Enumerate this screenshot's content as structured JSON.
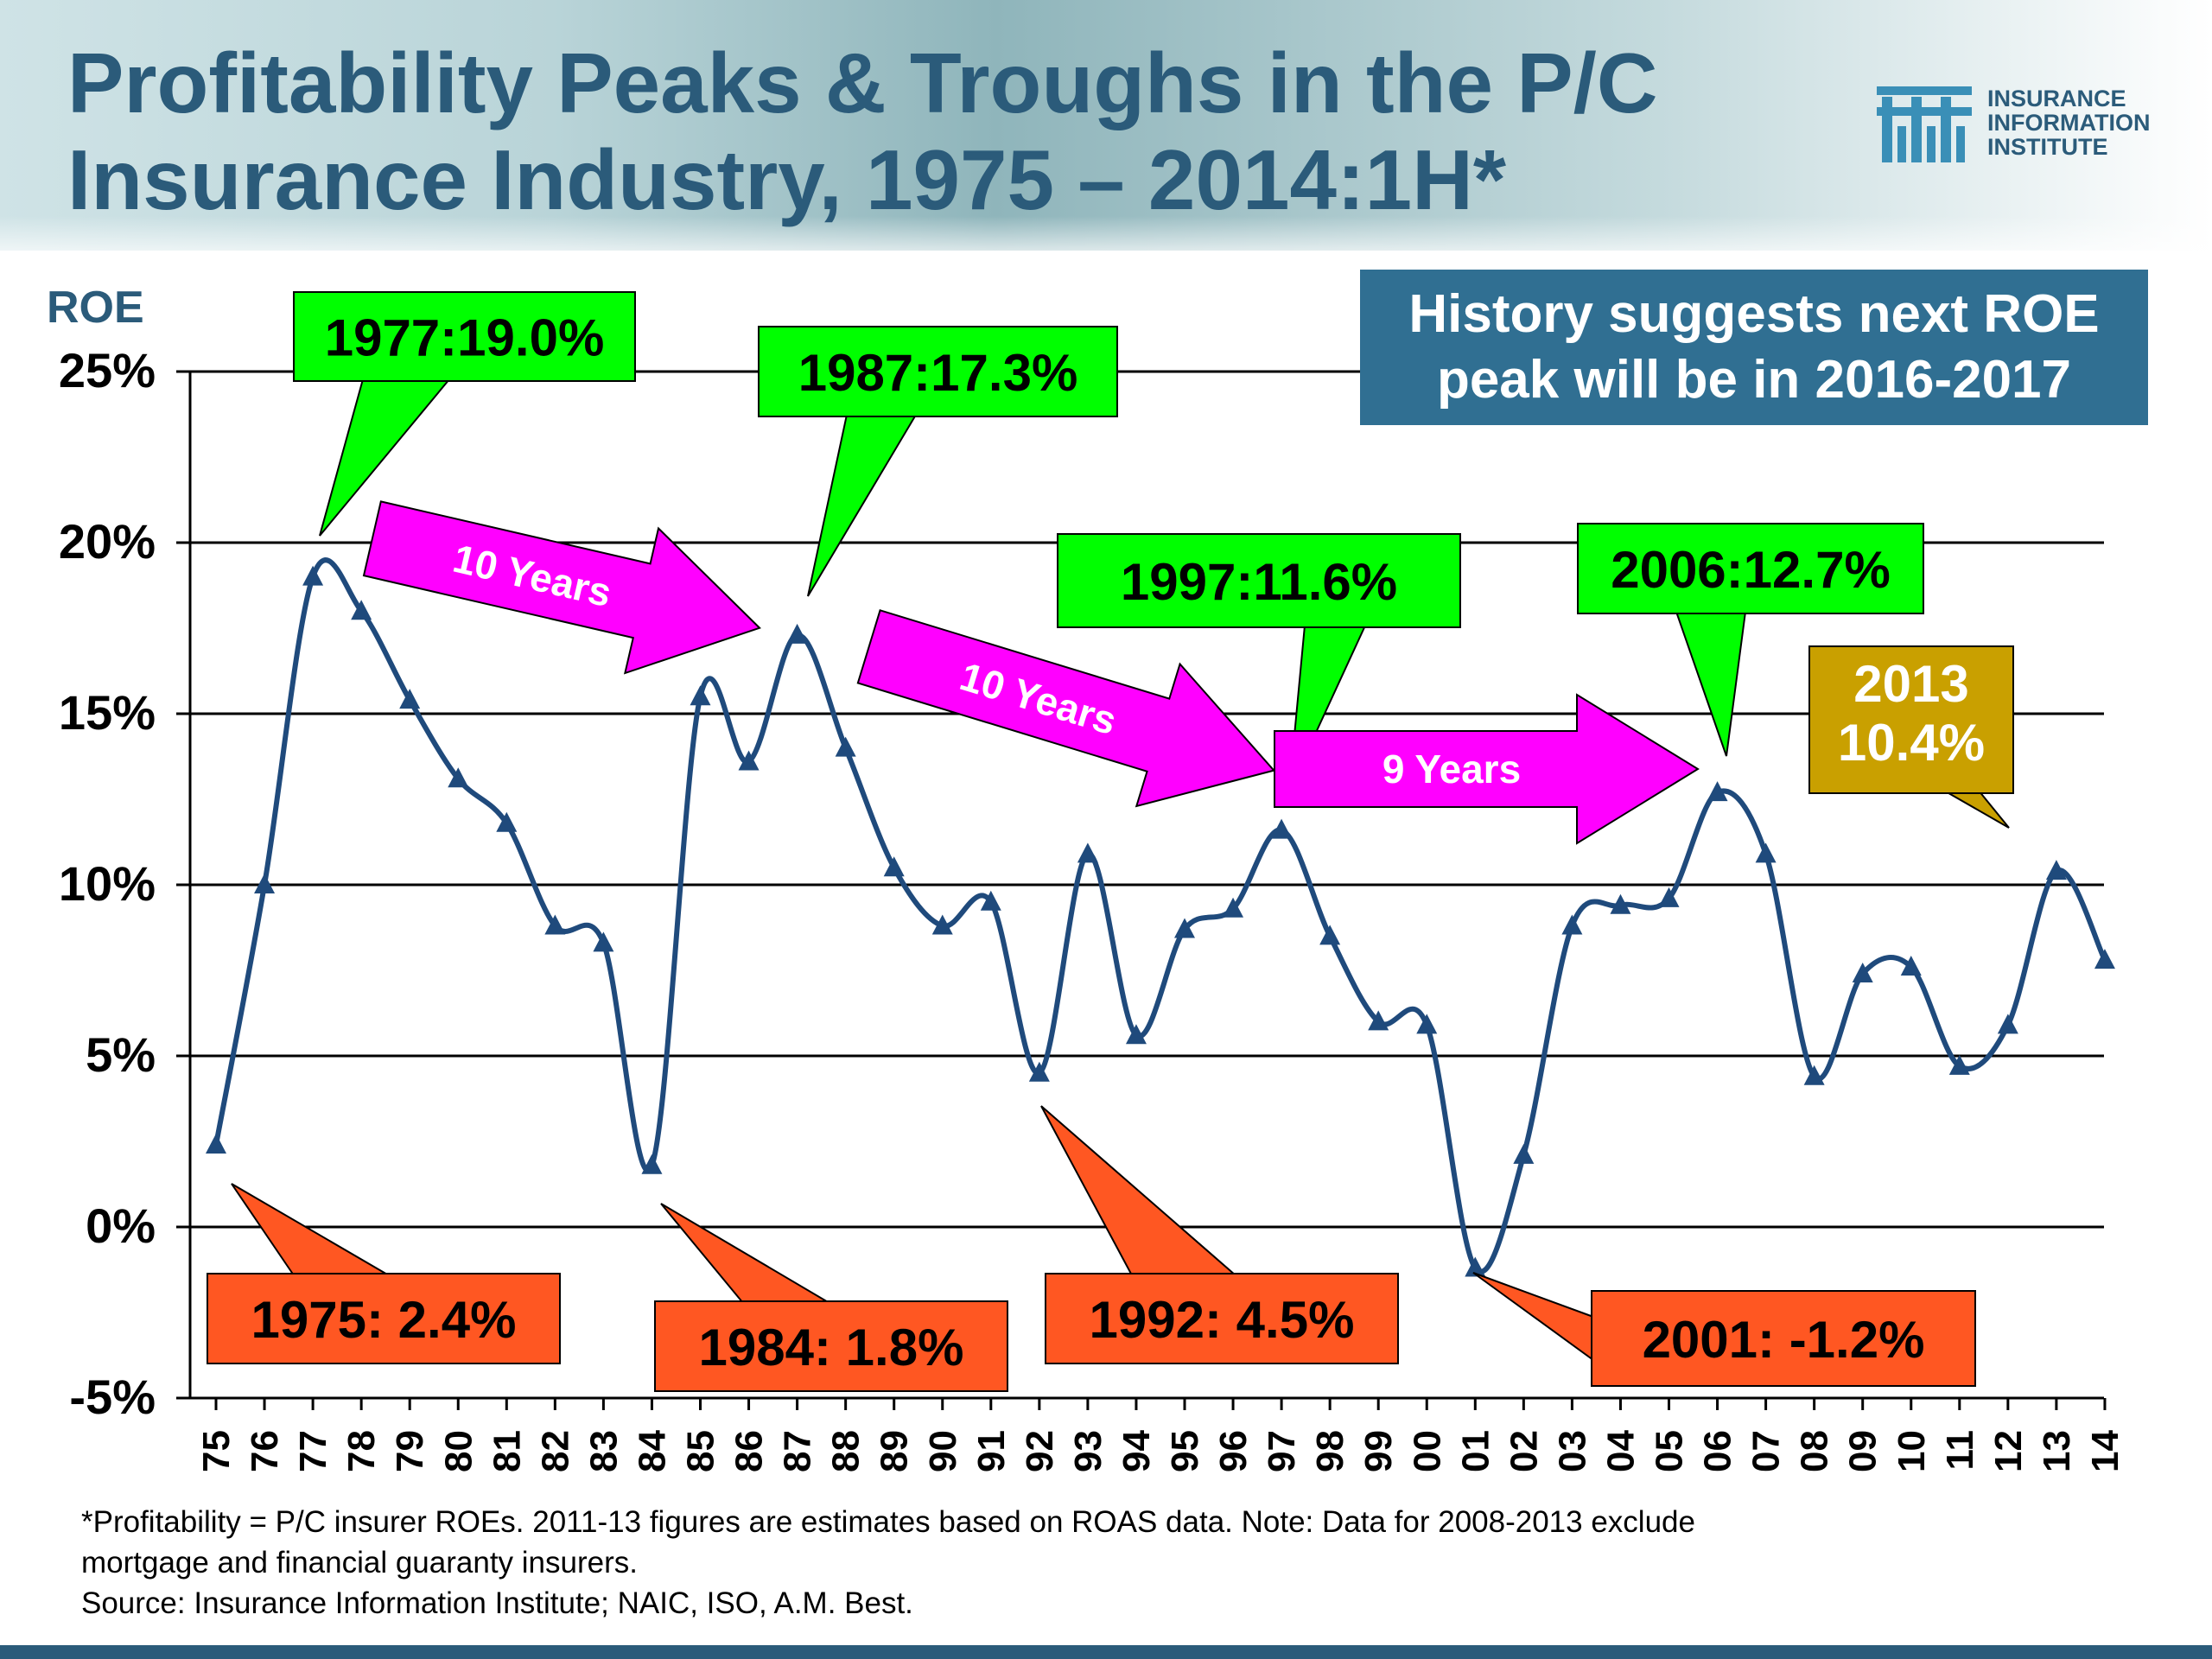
{
  "title": "Profitability Peaks & Troughs in the P/C Insurance Industry, 1975 – 2014:1H*",
  "logo": {
    "line1": "INSURANCE",
    "line2": "INFORMATION",
    "line3": "INSTITUTE"
  },
  "info_box": {
    "line1": "History suggests next ROE",
    "line2": "peak will be in 2016-2017"
  },
  "footnote": {
    "line1": "*Profitability =  P/C insurer ROEs. 2011-13 figures are estimates based on ROAS data.  Note:  Data for 2008-2013 exclude",
    "line2": "mortgage and financial guaranty insurers.",
    "line3": "Source:  Insurance Information Institute; NAIC, ISO, A.M. Best."
  },
  "colors": {
    "title": "#2b5b7a",
    "line": "#1f4a7c",
    "peak_fill": "#00ff00",
    "trough_fill": "#ff5722",
    "arrow_fill": "#ff00ff",
    "forecast_fill": "#c9a000",
    "info_box": "#306f92"
  },
  "chart_data": {
    "type": "line",
    "ylabel": "ROE",
    "ylim": [
      -5,
      25
    ],
    "yticks": [
      -5,
      0,
      5,
      10,
      15,
      20,
      25
    ],
    "ytick_labels": [
      "-5%",
      "0%",
      "5%",
      "10%",
      "15%",
      "20%",
      "25%"
    ],
    "grid": "horizontal",
    "categories": [
      "75",
      "76",
      "77",
      "78",
      "79",
      "80",
      "81",
      "82",
      "83",
      "84",
      "85",
      "86",
      "87",
      "88",
      "89",
      "90",
      "91",
      "92",
      "93",
      "94",
      "95",
      "96",
      "97",
      "98",
      "99",
      "00",
      "01",
      "02",
      "03",
      "04",
      "05",
      "06",
      "07",
      "08",
      "09",
      "10",
      "11",
      "12",
      "13",
      "14"
    ],
    "series": [
      {
        "values": [
          2.4,
          10.0,
          19.0,
          18.0,
          15.4,
          13.1,
          11.8,
          8.8,
          8.3,
          1.8,
          15.5,
          13.6,
          17.3,
          14.0,
          10.5,
          8.8,
          9.5,
          4.5,
          10.9,
          5.6,
          8.7,
          9.3,
          11.6,
          8.5,
          6.0,
          5.9,
          -1.2,
          2.1,
          8.8,
          9.4,
          9.6,
          12.7,
          10.9,
          4.4,
          7.4,
          7.6,
          4.7,
          5.9,
          10.4,
          7.8
        ]
      }
    ],
    "annotations": {
      "peaks": [
        {
          "label": "1977:19.0%",
          "category": "77"
        },
        {
          "label": "1987:17.3%",
          "category": "87"
        },
        {
          "label": "1997:11.6%",
          "category": "97"
        },
        {
          "label": "2006:12.7%",
          "category": "06"
        }
      ],
      "troughs": [
        {
          "label": "1975: 2.4%",
          "category": "75"
        },
        {
          "label": "1984: 1.8%",
          "category": "84"
        },
        {
          "label": "1992: 4.5%",
          "category": "92"
        },
        {
          "label": "2001: -1.2%",
          "category": "01"
        }
      ],
      "arrows": [
        {
          "label": "10 Years",
          "from": "77",
          "to": "87"
        },
        {
          "label": "10 Years",
          "from": "87",
          "to": "97"
        },
        {
          "label": "9 Years",
          "from": "97",
          "to": "06"
        }
      ],
      "forecast": {
        "line1": "2013",
        "line2": "10.4%",
        "category": "13"
      }
    }
  }
}
